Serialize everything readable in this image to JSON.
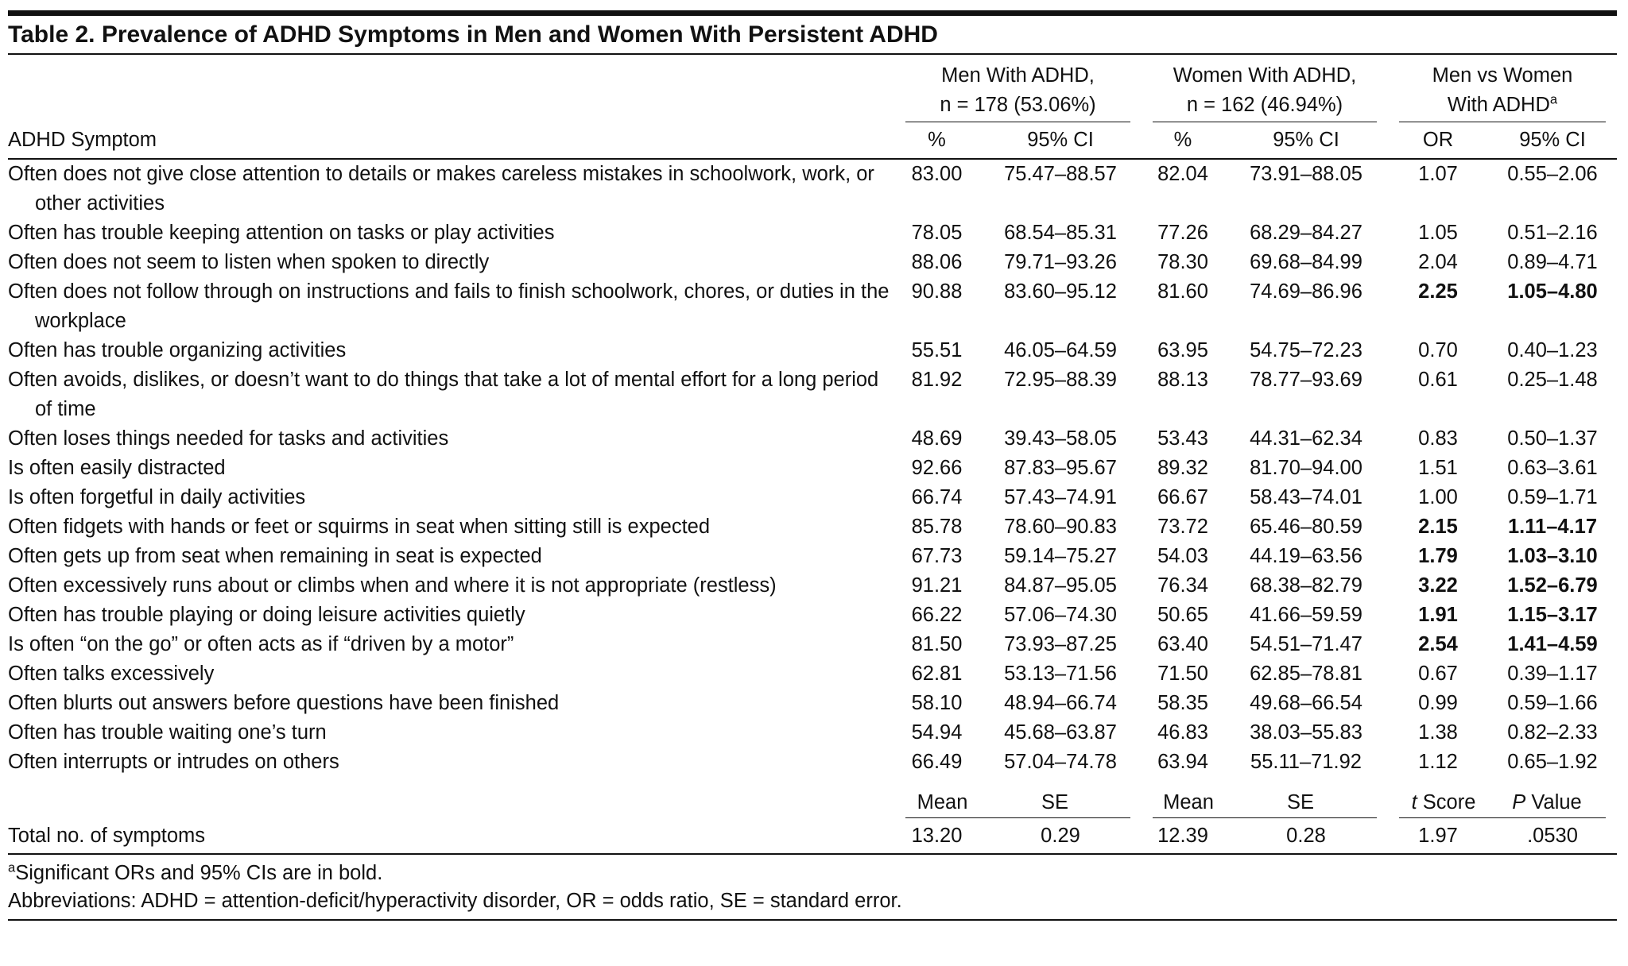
{
  "title": "Table 2. Prevalence of ADHD Symptoms in Men and Women With Persistent ADHD",
  "groups": [
    {
      "line1": "Men With ADHD,",
      "line2": "n = 178 (53.06%)"
    },
    {
      "line1": "Women With ADHD,",
      "line2": "n = 162 (46.94%)"
    },
    {
      "line1": "Men vs Women",
      "line2": "With ADHD",
      "marker": "a"
    }
  ],
  "stub_header": "ADHD Symptom",
  "subheaders": [
    "%",
    "95% CI",
    "%",
    "95% CI",
    "OR",
    "95% CI"
  ],
  "rows": [
    {
      "symptom": "Often does not give close attention to details or makes careless mistakes in schoolwork, work, or other activities",
      "cells": [
        "83.00",
        "75.47–88.57",
        "82.04",
        "73.91–88.05",
        "1.07",
        "0.55–2.06"
      ],
      "significant": false
    },
    {
      "symptom": "Often has trouble keeping attention on tasks or play activities",
      "cells": [
        "78.05",
        "68.54–85.31",
        "77.26",
        "68.29–84.27",
        "1.05",
        "0.51–2.16"
      ],
      "significant": false
    },
    {
      "symptom": "Often does not seem to listen when spoken to directly",
      "cells": [
        "88.06",
        "79.71–93.26",
        "78.30",
        "69.68–84.99",
        "2.04",
        "0.89–4.71"
      ],
      "significant": false
    },
    {
      "symptom": "Often does not follow through on instructions and fails to finish schoolwork, chores, or duties in the workplace",
      "cells": [
        "90.88",
        "83.60–95.12",
        "81.60",
        "74.69–86.96",
        "2.25",
        "1.05–4.80"
      ],
      "significant": true
    },
    {
      "symptom": "Often has trouble organizing activities",
      "cells": [
        "55.51",
        "46.05–64.59",
        "63.95",
        "54.75–72.23",
        "0.70",
        "0.40–1.23"
      ],
      "significant": false
    },
    {
      "symptom": "Often avoids, dislikes, or doesn’t want to do things that take a lot of mental effort for a long period of time",
      "cells": [
        "81.92",
        "72.95–88.39",
        "88.13",
        "78.77–93.69",
        "0.61",
        "0.25–1.48"
      ],
      "significant": false
    },
    {
      "symptom": "Often loses things needed for tasks and activities",
      "cells": [
        "48.69",
        "39.43–58.05",
        "53.43",
        "44.31–62.34",
        "0.83",
        "0.50–1.37"
      ],
      "significant": false
    },
    {
      "symptom": "Is often easily distracted",
      "cells": [
        "92.66",
        "87.83–95.67",
        "89.32",
        "81.70–94.00",
        "1.51",
        "0.63–3.61"
      ],
      "significant": false
    },
    {
      "symptom": "Is often forgetful in daily activities",
      "cells": [
        "66.74",
        "57.43–74.91",
        "66.67",
        "58.43–74.01",
        "1.00",
        "0.59–1.71"
      ],
      "significant": false
    },
    {
      "symptom": "Often fidgets with hands or feet or squirms in seat when sitting still is expected",
      "cells": [
        "85.78",
        "78.60–90.83",
        "73.72",
        "65.46–80.59",
        "2.15",
        "1.11–4.17"
      ],
      "significant": true
    },
    {
      "symptom": "Often gets up from seat when remaining in seat is expected",
      "cells": [
        "67.73",
        "59.14–75.27",
        "54.03",
        "44.19–63.56",
        "1.79",
        "1.03–3.10"
      ],
      "significant": true
    },
    {
      "symptom": "Often excessively runs about or climbs when and where it is not appropriate (restless)",
      "cells": [
        "91.21",
        "84.87–95.05",
        "76.34",
        "68.38–82.79",
        "3.22",
        "1.52–6.79"
      ],
      "significant": true
    },
    {
      "symptom": "Often has trouble playing or doing leisure activities quietly",
      "cells": [
        "66.22",
        "57.06–74.30",
        "50.65",
        "41.66–59.59",
        "1.91",
        "1.15–3.17"
      ],
      "significant": true
    },
    {
      "symptom": "Is often “on the go” or often acts as if “driven by a motor”",
      "cells": [
        "81.50",
        "73.93–87.25",
        "63.40",
        "54.51–71.47",
        "2.54",
        "1.41–4.59"
      ],
      "significant": true
    },
    {
      "symptom": "Often talks excessively",
      "cells": [
        "62.81",
        "53.13–71.56",
        "71.50",
        "62.85–78.81",
        "0.67",
        "0.39–1.17"
      ],
      "significant": false
    },
    {
      "symptom": "Often blurts out answers before questions have been finished",
      "cells": [
        "58.10",
        "48.94–66.74",
        "58.35",
        "49.68–66.54",
        "0.99",
        "0.59–1.66"
      ],
      "significant": false
    },
    {
      "symptom": "Often has trouble waiting one’s turn",
      "cells": [
        "54.94",
        "45.68–63.87",
        "46.83",
        "38.03–55.83",
        "1.38",
        "0.82–2.33"
      ],
      "significant": false
    },
    {
      "symptom": "Often interrupts or intrudes on others",
      "cells": [
        "66.49",
        "57.04–74.78",
        "63.94",
        "55.11–71.92",
        "1.12",
        "0.65–1.92"
      ],
      "significant": false
    }
  ],
  "summary_headers": [
    {
      "text": "Mean"
    },
    {
      "text": "SE"
    },
    {
      "text": "Mean"
    },
    {
      "text": "SE"
    },
    {
      "italic": "t",
      "rest": "Score"
    },
    {
      "italic": "P",
      "rest": "Value"
    }
  ],
  "total": {
    "label": "Total no. of symptoms",
    "cells": [
      "13.20",
      "0.29",
      "12.39",
      "0.28",
      "1.97",
      ".0530"
    ]
  },
  "footnotes": [
    {
      "marker": "a",
      "text": "Significant ORs and 95% CIs are in bold."
    },
    {
      "text": "Abbreviations: ADHD = attention-deficit/hyperactivity disorder, OR = odds ratio, SE = standard error."
    }
  ]
}
